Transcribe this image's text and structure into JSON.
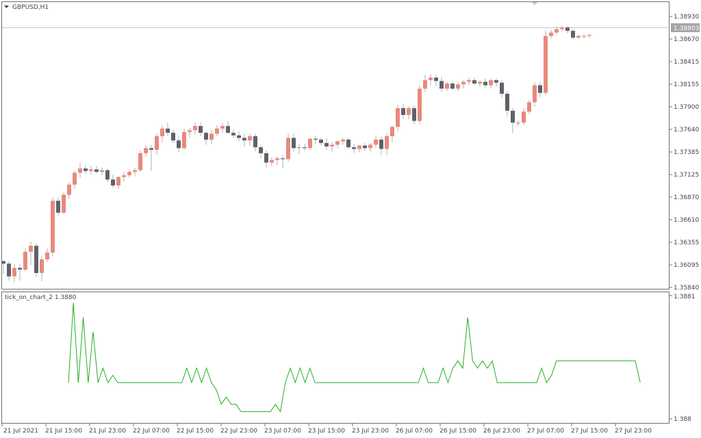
{
  "main_chart": {
    "title": "GBPUSD,H1",
    "current_price": "1.38803",
    "colors": {
      "bull": "#e9897c",
      "bear": "#5f6369",
      "wick": "#aab0b6",
      "grid_line": "#c7c7c7",
      "price_tag_bg": "#a6a6a6"
    }
  },
  "price_axis_labels": [
    "1.38930",
    "1.38670",
    "1.38415",
    "1.38155",
    "1.37900",
    "1.37640",
    "1.37385",
    "1.37125",
    "1.36870",
    "1.36610",
    "1.36355",
    "1.36095",
    "1.35840"
  ],
  "indicator": {
    "title": "tick_on_chart_2 1.3880",
    "axis_top": "1.3881",
    "axis_bottom": "1.388",
    "line_color": "#1fae1f"
  },
  "time_axis_labels": [
    "21 Jul 2021",
    "21 Jul 15:00",
    "21 Jul 23:00",
    "22 Jul 07:00",
    "22 Jul 15:00",
    "22 Jul 23:00",
    "23 Jul 07:00",
    "23 Jul 15:00",
    "23 Jul 23:00",
    "26 Jul 07:00",
    "26 Jul 15:00",
    "26 Jul 23:00",
    "27 Jul 07:00",
    "27 Jul 15:00",
    "27 Jul 23:00"
  ],
  "chart_data": [
    {
      "type": "candlestick",
      "title": "GBPUSD,H1",
      "ylim": [
        1.3584,
        1.3903
      ],
      "x_start": "21 Jul 2021",
      "x_unit": "1 hour per candle",
      "x": [
        "21 Jul 2021",
        "21 Jul 15:00",
        "21 Jul 23:00",
        "22 Jul 07:00",
        "22 Jul 15:00",
        "22 Jul 23:00",
        "23 Jul 07:00",
        "23 Jul 15:00",
        "23 Jul 23:00",
        "26 Jul 07:00",
        "26 Jul 15:00",
        "26 Jul 23:00",
        "27 Jul 07:00",
        "27 Jul 15:00",
        "27 Jul 23:00"
      ],
      "candles": [
        [
          1.3615,
          1.3616,
          1.36,
          1.3612
        ],
        [
          1.3612,
          1.3615,
          1.3592,
          1.3597
        ],
        [
          1.3597,
          1.3612,
          1.359,
          1.3607
        ],
        [
          1.3607,
          1.3612,
          1.3592,
          1.3605
        ],
        [
          1.3605,
          1.363,
          1.3603,
          1.3626
        ],
        [
          1.3626,
          1.3638,
          1.361,
          1.3633
        ],
        [
          1.3633,
          1.3636,
          1.3596,
          1.3601
        ],
        [
          1.3601,
          1.3621,
          1.3591,
          1.3617
        ],
        [
          1.3617,
          1.363,
          1.3614,
          1.3625
        ],
        [
          1.3625,
          1.369,
          1.3621,
          1.3686
        ],
        [
          1.3686,
          1.369,
          1.3668,
          1.3672
        ],
        [
          1.3672,
          1.3696,
          1.367,
          1.3693
        ],
        [
          1.3693,
          1.3708,
          1.3688,
          1.3705
        ],
        [
          1.3705,
          1.3722,
          1.37,
          1.3719
        ],
        [
          1.3719,
          1.3731,
          1.3713,
          1.3724
        ],
        [
          1.3724,
          1.3728,
          1.3718,
          1.3721
        ],
        [
          1.3721,
          1.3727,
          1.3717,
          1.3723
        ],
        [
          1.3723,
          1.3727,
          1.3718,
          1.372
        ],
        [
          1.372,
          1.3725,
          1.3716,
          1.3722
        ],
        [
          1.3722,
          1.3724,
          1.3708,
          1.3711
        ],
        [
          1.3711,
          1.3717,
          1.3701,
          1.3704
        ],
        [
          1.3704,
          1.3715,
          1.37,
          1.3714
        ],
        [
          1.3714,
          1.372,
          1.3709,
          1.3716
        ],
        [
          1.3716,
          1.3723,
          1.3713,
          1.372
        ],
        [
          1.372,
          1.3725,
          1.3715,
          1.3722
        ],
        [
          1.3722,
          1.3745,
          1.372,
          1.3742
        ],
        [
          1.3742,
          1.3752,
          1.3738,
          1.3748
        ],
        [
          1.3748,
          1.3752,
          1.3721,
          1.3746
        ],
        [
          1.3746,
          1.3765,
          1.374,
          1.3762
        ],
        [
          1.3762,
          1.3775,
          1.3755,
          1.3771
        ],
        [
          1.3771,
          1.3778,
          1.3762,
          1.3766
        ],
        [
          1.3766,
          1.377,
          1.3754,
          1.3757
        ],
        [
          1.3757,
          1.3762,
          1.3743,
          1.3748
        ],
        [
          1.3748,
          1.3771,
          1.3746,
          1.3767
        ],
        [
          1.3767,
          1.3772,
          1.376,
          1.3769
        ],
        [
          1.3769,
          1.3778,
          1.3764,
          1.3774
        ],
        [
          1.3774,
          1.3778,
          1.3762,
          1.3766
        ],
        [
          1.3766,
          1.3768,
          1.3752,
          1.3758
        ],
        [
          1.3758,
          1.377,
          1.3753,
          1.3765
        ],
        [
          1.3765,
          1.3775,
          1.3762,
          1.3771
        ],
        [
          1.3771,
          1.3778,
          1.3766,
          1.3774
        ],
        [
          1.3774,
          1.378,
          1.3765,
          1.3766
        ],
        [
          1.3766,
          1.377,
          1.376,
          1.3763
        ],
        [
          1.3763,
          1.3768,
          1.3756,
          1.376
        ],
        [
          1.376,
          1.3765,
          1.375,
          1.3757
        ],
        [
          1.3757,
          1.3765,
          1.3751,
          1.3762
        ],
        [
          1.3762,
          1.3765,
          1.3744,
          1.3749
        ],
        [
          1.3749,
          1.3752,
          1.3736,
          1.3742
        ],
        [
          1.3742,
          1.3745,
          1.3725,
          1.3731
        ],
        [
          1.3731,
          1.3737,
          1.3726,
          1.3734
        ],
        [
          1.3734,
          1.3738,
          1.3728,
          1.3736
        ],
        [
          1.3736,
          1.374,
          1.3724,
          1.3735
        ],
        [
          1.3735,
          1.3765,
          1.3732,
          1.376
        ],
        [
          1.376,
          1.3766,
          1.3744,
          1.3748
        ],
        [
          1.3748,
          1.3753,
          1.3741,
          1.3749
        ],
        [
          1.3749,
          1.3753,
          1.3745,
          1.3748
        ],
        [
          1.3748,
          1.376,
          1.3746,
          1.3759
        ],
        [
          1.3759,
          1.3762,
          1.3753,
          1.3758
        ],
        [
          1.3758,
          1.376,
          1.3751,
          1.3754
        ],
        [
          1.3754,
          1.376,
          1.3746,
          1.375
        ],
        [
          1.375,
          1.3755,
          1.3744,
          1.3752
        ],
        [
          1.3752,
          1.3757,
          1.3748,
          1.3756
        ],
        [
          1.3756,
          1.376,
          1.3752,
          1.3758
        ],
        [
          1.3758,
          1.376,
          1.3747,
          1.3749
        ],
        [
          1.3749,
          1.3753,
          1.3742,
          1.3747
        ],
        [
          1.3747,
          1.3752,
          1.3743,
          1.3751
        ],
        [
          1.3751,
          1.3754,
          1.3745,
          1.3748
        ],
        [
          1.3748,
          1.3754,
          1.3744,
          1.3752
        ],
        [
          1.3752,
          1.3762,
          1.3748,
          1.3758
        ],
        [
          1.3758,
          1.3762,
          1.374,
          1.3747
        ],
        [
          1.3747,
          1.3766,
          1.374,
          1.3762
        ],
        [
          1.3762,
          1.3775,
          1.3755,
          1.3773
        ],
        [
          1.3773,
          1.3799,
          1.3768,
          1.3795
        ],
        [
          1.3795,
          1.38,
          1.3783,
          1.3787
        ],
        [
          1.3787,
          1.3797,
          1.3782,
          1.3795
        ],
        [
          1.3795,
          1.3798,
          1.3776,
          1.378
        ],
        [
          1.378,
          1.3822,
          1.3776,
          1.3818
        ],
        [
          1.3818,
          1.3834,
          1.3814,
          1.3828
        ],
        [
          1.3828,
          1.3835,
          1.3822,
          1.3831
        ],
        [
          1.3831,
          1.3834,
          1.3821,
          1.3827
        ],
        [
          1.3827,
          1.3832,
          1.3814,
          1.3818
        ],
        [
          1.3818,
          1.3826,
          1.3815,
          1.3824
        ],
        [
          1.3824,
          1.3827,
          1.3816,
          1.3818
        ],
        [
          1.3818,
          1.3826,
          1.3815,
          1.3823
        ],
        [
          1.3823,
          1.3828,
          1.3818,
          1.3826
        ],
        [
          1.3826,
          1.3831,
          1.3822,
          1.3828
        ],
        [
          1.3828,
          1.3831,
          1.3822,
          1.3824
        ],
        [
          1.3824,
          1.3828,
          1.382,
          1.3826
        ],
        [
          1.3826,
          1.383,
          1.3818,
          1.3822
        ],
        [
          1.3822,
          1.383,
          1.3818,
          1.3828
        ],
        [
          1.3828,
          1.383,
          1.382,
          1.3825
        ],
        [
          1.3825,
          1.3828,
          1.3807,
          1.3812
        ],
        [
          1.3812,
          1.3815,
          1.3785,
          1.3792
        ],
        [
          1.3792,
          1.3795,
          1.3766,
          1.3778
        ],
        [
          1.3778,
          1.378,
          1.3774,
          1.3778
        ],
        [
          1.3778,
          1.3795,
          1.3775,
          1.3791
        ],
        [
          1.3791,
          1.3805,
          1.3788,
          1.3802
        ],
        [
          1.3802,
          1.3826,
          1.3797,
          1.3822
        ],
        [
          1.3822,
          1.3826,
          1.3808,
          1.3813
        ],
        [
          1.3813,
          1.3886,
          1.381,
          1.388
        ],
        [
          1.388,
          1.3887,
          1.3877,
          1.3884
        ],
        [
          1.3884,
          1.3891,
          1.3882,
          1.3888
        ],
        [
          1.3888,
          1.3892,
          1.3885,
          1.389
        ],
        [
          1.389,
          1.3892,
          1.3883,
          1.3886
        ],
        [
          1.3886,
          1.3888,
          1.3876,
          1.3878
        ],
        [
          1.3878,
          1.3882,
          1.3876,
          1.388
        ],
        [
          1.388,
          1.3882,
          1.3877,
          1.388
        ],
        [
          1.388,
          1.3883,
          1.3878,
          1.3881
        ]
      ]
    },
    {
      "type": "line",
      "title": "tick_on_chart_2 1.3880",
      "ylim": [
        1.38795,
        1.38812
      ],
      "series": [
        {
          "values": [
            1.388,
            1.38811,
            1.388,
            1.38809,
            1.388,
            1.38807,
            1.388,
            1.38802,
            1.388,
            1.38801,
            1.388,
            1.388,
            1.388,
            1.388,
            1.388,
            1.388,
            1.388,
            1.388,
            1.388,
            1.388,
            1.388,
            1.388,
            1.388,
            1.388,
            1.38802,
            1.388,
            1.38802,
            1.388,
            1.38802,
            1.388,
            1.38799,
            1.38797,
            1.38798,
            1.38797,
            1.38797,
            1.38796,
            1.38796,
            1.38796,
            1.38796,
            1.38796,
            1.38796,
            1.38796,
            1.38797,
            1.38796,
            1.388,
            1.38802,
            1.388,
            1.38802,
            1.388,
            1.38802,
            1.388,
            1.388,
            1.388,
            1.388,
            1.388,
            1.388,
            1.388,
            1.388,
            1.388,
            1.388,
            1.388,
            1.388,
            1.388,
            1.388,
            1.388,
            1.388,
            1.388,
            1.388,
            1.388,
            1.388,
            1.388,
            1.388,
            1.38802,
            1.388,
            1.388,
            1.388,
            1.38802,
            1.388,
            1.38802,
            1.38803,
            1.38802,
            1.38809,
            1.38803,
            1.38802,
            1.38803,
            1.38802,
            1.38803,
            1.388,
            1.388,
            1.388,
            1.388,
            1.388,
            1.388,
            1.388,
            1.388,
            1.388,
            1.38802,
            1.388,
            1.38801,
            1.38803,
            1.38803,
            1.38803,
            1.38803,
            1.38803,
            1.38803,
            1.38803,
            1.38803,
            1.38803,
            1.38803,
            1.38803,
            1.38803,
            1.38803,
            1.38803,
            1.38803,
            1.38803,
            1.38803,
            1.388
          ]
        }
      ]
    }
  ]
}
